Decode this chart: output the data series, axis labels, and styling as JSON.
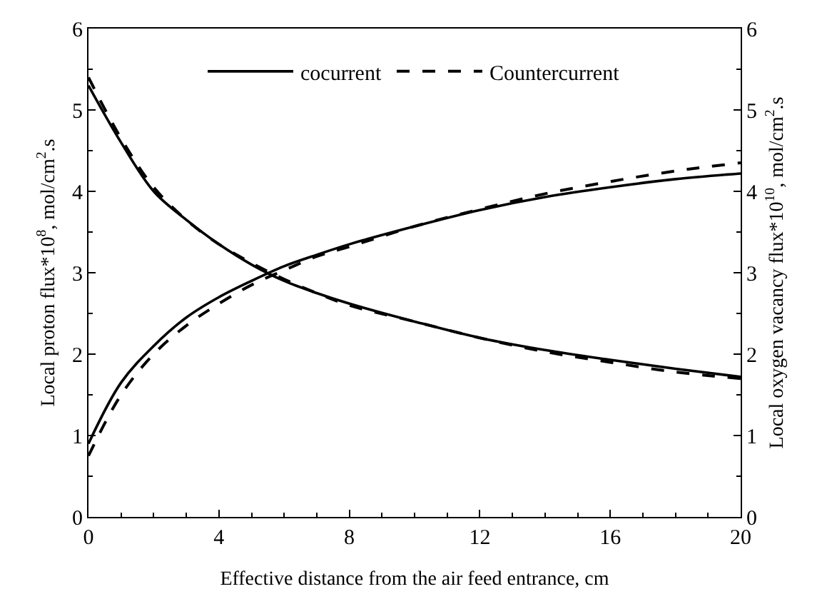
{
  "chart_data": {
    "type": "line",
    "xlabel": "Effective distance from the air feed entrance, cm",
    "ylabel": "Local proton flux*10$^{8}$, mol/cm$^{2}$.s",
    "y2label": "Local oxygen vacancy flux*10$^{10}$, mol/cm$^{2}$.s",
    "x": [
      0,
      1,
      2,
      3,
      4,
      5,
      6,
      7,
      8,
      10,
      12,
      14,
      16,
      18,
      20
    ],
    "xlim": [
      0,
      20
    ],
    "xticks": [
      0,
      4,
      8,
      12,
      16,
      20
    ],
    "ylim": [
      0,
      6
    ],
    "yticks": [
      0,
      1,
      2,
      3,
      4,
      5,
      6
    ],
    "y2lim": [
      0,
      6
    ],
    "y2ticks": [
      0,
      1,
      2,
      3,
      4,
      5,
      6
    ],
    "legend": "top",
    "series": [
      {
        "name": "cocurrent",
        "color": "#000000",
        "line_style": "solid",
        "values": [
          5.3,
          4.6,
          4.0,
          3.65,
          3.35,
          3.1,
          2.9,
          2.75,
          2.62,
          2.4,
          2.2,
          2.05,
          1.93,
          1.82,
          1.72
        ]
      },
      {
        "name": "Countercurrent",
        "color": "#000000",
        "line_style": "dashed",
        "values": [
          5.4,
          4.65,
          4.05,
          3.65,
          3.35,
          3.12,
          2.92,
          2.75,
          2.6,
          2.4,
          2.2,
          2.03,
          1.9,
          1.78,
          1.7
        ]
      },
      {
        "color": "#000000",
        "line_style": "solid",
        "axis": "y2",
        "values": [
          0.9,
          1.65,
          2.1,
          2.45,
          2.7,
          2.9,
          3.08,
          3.22,
          3.35,
          3.57,
          3.77,
          3.93,
          4.05,
          4.15,
          4.22
        ]
      },
      {
        "color": "#000000",
        "line_style": "dashed",
        "axis": "y2",
        "values": [
          0.75,
          1.5,
          2.0,
          2.35,
          2.62,
          2.85,
          3.03,
          3.2,
          3.32,
          3.57,
          3.78,
          3.97,
          4.12,
          4.25,
          4.35
        ]
      }
    ]
  }
}
